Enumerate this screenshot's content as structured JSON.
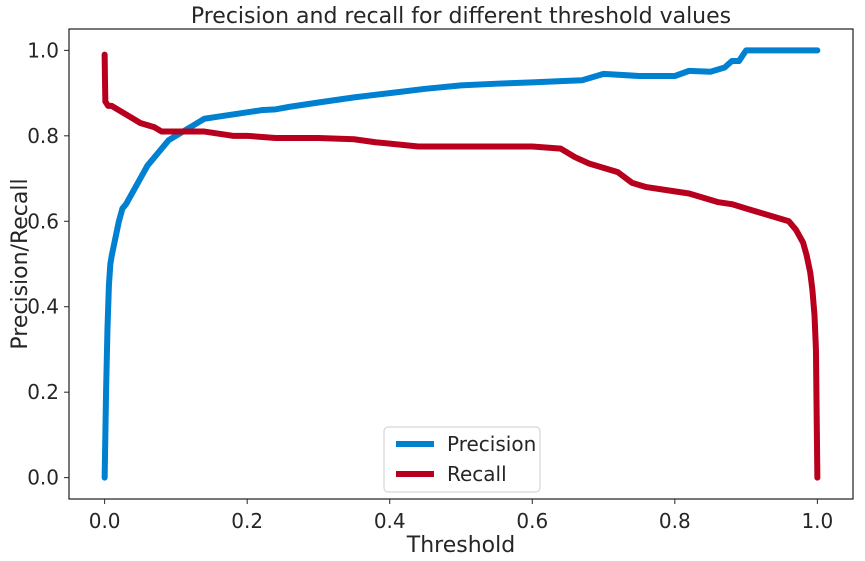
{
  "chart_data": {
    "type": "line",
    "title": "Precision and recall for different threshold values",
    "xlabel": "Threshold",
    "ylabel": "Precision/Recall",
    "xlim": [
      -0.05,
      1.05
    ],
    "ylim": [
      -0.05,
      1.05
    ],
    "xticks": [
      0.0,
      0.2,
      0.4,
      0.6,
      0.8,
      1.0
    ],
    "xtick_labels": [
      "0.0",
      "0.2",
      "0.4",
      "0.6",
      "0.8",
      "1.0"
    ],
    "yticks": [
      0.0,
      0.2,
      0.4,
      0.6,
      0.8,
      1.0
    ],
    "ytick_labels": [
      "0.0",
      "0.2",
      "0.4",
      "0.6",
      "0.8",
      "1.0"
    ],
    "grid": false,
    "legend_position": "lower center",
    "series": [
      {
        "name": "Precision",
        "color": "#0080d0",
        "x": [
          0.0,
          0.002,
          0.004,
          0.006,
          0.008,
          0.01,
          0.015,
          0.02,
          0.025,
          0.03,
          0.04,
          0.05,
          0.06,
          0.07,
          0.08,
          0.09,
          0.1,
          0.12,
          0.14,
          0.16,
          0.18,
          0.2,
          0.22,
          0.24,
          0.26,
          0.3,
          0.35,
          0.4,
          0.45,
          0.5,
          0.55,
          0.6,
          0.64,
          0.67,
          0.7,
          0.75,
          0.8,
          0.82,
          0.85,
          0.87,
          0.88,
          0.89,
          0.9,
          1.0
        ],
        "y": [
          0.0,
          0.2,
          0.35,
          0.45,
          0.5,
          0.52,
          0.56,
          0.6,
          0.63,
          0.64,
          0.67,
          0.7,
          0.73,
          0.75,
          0.77,
          0.79,
          0.8,
          0.82,
          0.84,
          0.845,
          0.85,
          0.855,
          0.86,
          0.862,
          0.868,
          0.878,
          0.89,
          0.9,
          0.91,
          0.918,
          0.922,
          0.925,
          0.928,
          0.93,
          0.945,
          0.94,
          0.94,
          0.952,
          0.95,
          0.96,
          0.975,
          0.975,
          1.0,
          1.0
        ]
      },
      {
        "name": "Recall",
        "color": "#b8001e",
        "x": [
          0.0,
          0.0005,
          0.001,
          0.003,
          0.005,
          0.01,
          0.02,
          0.03,
          0.04,
          0.05,
          0.06,
          0.07,
          0.08,
          0.1,
          0.12,
          0.14,
          0.16,
          0.18,
          0.2,
          0.24,
          0.3,
          0.35,
          0.38,
          0.44,
          0.5,
          0.6,
          0.64,
          0.66,
          0.68,
          0.7,
          0.72,
          0.74,
          0.76,
          0.8,
          0.82,
          0.84,
          0.86,
          0.88,
          0.9,
          0.92,
          0.94,
          0.96,
          0.97,
          0.98,
          0.985,
          0.99,
          0.993,
          0.996,
          0.998,
          0.999,
          1.0
        ],
        "y": [
          0.99,
          0.93,
          0.88,
          0.875,
          0.87,
          0.87,
          0.86,
          0.85,
          0.84,
          0.83,
          0.825,
          0.82,
          0.81,
          0.81,
          0.81,
          0.81,
          0.805,
          0.8,
          0.8,
          0.795,
          0.795,
          0.792,
          0.785,
          0.775,
          0.775,
          0.775,
          0.77,
          0.75,
          0.735,
          0.725,
          0.715,
          0.69,
          0.68,
          0.67,
          0.665,
          0.655,
          0.645,
          0.64,
          0.63,
          0.62,
          0.61,
          0.6,
          0.58,
          0.55,
          0.52,
          0.48,
          0.44,
          0.38,
          0.3,
          0.15,
          0.0
        ]
      }
    ]
  }
}
